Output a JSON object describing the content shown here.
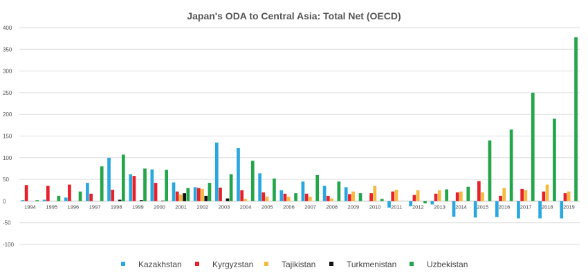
{
  "chart_data": {
    "type": "bar",
    "title": "Japan's ODA to Central Asia: Total Net (OECD)",
    "xlabel": "",
    "ylabel": "",
    "ylim": [
      -100,
      400
    ],
    "yticks": [
      -100,
      -50,
      0,
      50,
      100,
      150,
      200,
      250,
      300,
      350,
      400
    ],
    "grid": true,
    "legend": "bottom",
    "categories": [
      "1994",
      "1995",
      "1996",
      "1997",
      "1998",
      "1999",
      "2000",
      "2001",
      "2002",
      "2003",
      "2004",
      "2005",
      "2006",
      "2007",
      "2008",
      "2009",
      "2010",
      "2011",
      "2012",
      "2013",
      "2014",
      "2015",
      "2016",
      "2017",
      "2018",
      "2019"
    ],
    "series": [
      {
        "name": "Kazakhstan",
        "color": "#29a8e0",
        "values": [
          2,
          3,
          8,
          42,
          100,
          62,
          73,
          43,
          32,
          135,
          122,
          64,
          25,
          45,
          35,
          32,
          0,
          -15,
          -12,
          -8,
          -36,
          -38,
          -37,
          -40,
          -40,
          -40
        ]
      },
      {
        "name": "Kyrgyzstan",
        "color": "#e8202a",
        "values": [
          37,
          35,
          38,
          17,
          26,
          58,
          42,
          22,
          30,
          31,
          25,
          20,
          17,
          17,
          12,
          16,
          18,
          22,
          14,
          17,
          20,
          46,
          12,
          28,
          22,
          18
        ]
      },
      {
        "name": "Tajikistan",
        "color": "#f7b940",
        "values": [
          0,
          0,
          0,
          0,
          0,
          0,
          0,
          15,
          28,
          0,
          5,
          10,
          10,
          10,
          6,
          22,
          35,
          26,
          25,
          25,
          22,
          20,
          30,
          25,
          38,
          22
        ]
      },
      {
        "name": "Turkmenistan",
        "color": "#111111",
        "values": [
          0,
          0,
          0,
          0,
          3,
          2,
          1,
          18,
          12,
          6,
          0,
          0,
          0,
          0,
          0,
          0,
          0,
          0,
          0,
          0,
          0,
          0,
          0,
          0,
          0,
          0
        ]
      },
      {
        "name": "Uzbekistan",
        "color": "#23a54a",
        "values": [
          2,
          12,
          22,
          80,
          107,
          75,
          72,
          30,
          42,
          62,
          93,
          52,
          18,
          60,
          45,
          18,
          5,
          0,
          -5,
          27,
          33,
          140,
          165,
          250,
          190,
          378
        ]
      }
    ]
  }
}
